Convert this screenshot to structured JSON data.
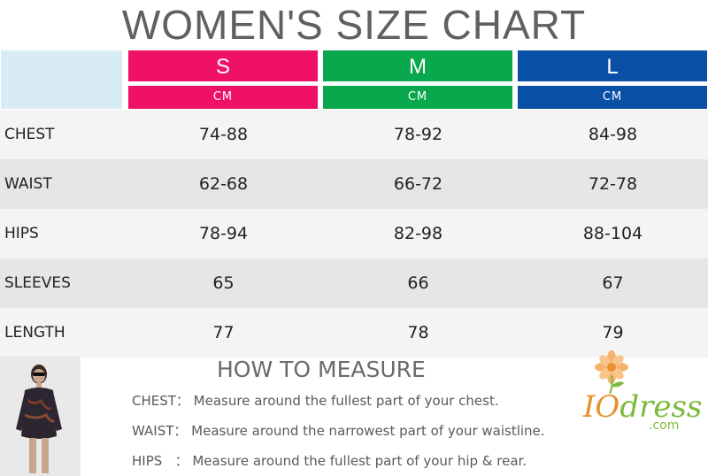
{
  "title": "WOMEN'S SIZE CHART",
  "sizes": [
    {
      "label": "S",
      "unit": "CM",
      "color": "#ee1166"
    },
    {
      "label": "M",
      "unit": "CM",
      "color": "#0aa84c"
    },
    {
      "label": "L",
      "unit": "CM",
      "color": "#0a4fa6"
    }
  ],
  "rows": [
    {
      "label": "CHEST",
      "values": [
        "74-88",
        "78-92",
        "84-98"
      ]
    },
    {
      "label": "WAIST",
      "values": [
        "62-68",
        "66-72",
        "72-78"
      ]
    },
    {
      "label": "HIPS",
      "values": [
        "78-94",
        "82-98",
        "88-104"
      ]
    },
    {
      "label": "SLEEVES",
      "values": [
        "65",
        "66",
        "67"
      ]
    },
    {
      "label": "LENGTH",
      "values": [
        "77",
        "78",
        "79"
      ]
    }
  ],
  "how_to": {
    "heading": "HOW TO MEASURE",
    "lines": [
      "CHEST： Measure around the fullest part of your chest.",
      "WAIST： Measure around the narrowest part of your waistline.",
      "HIPS   ： Measure around the fullest part of your hip & rear."
    ]
  },
  "logo": {
    "brand_a": "IO",
    "brand_b": "dress",
    "domain": ".com"
  }
}
